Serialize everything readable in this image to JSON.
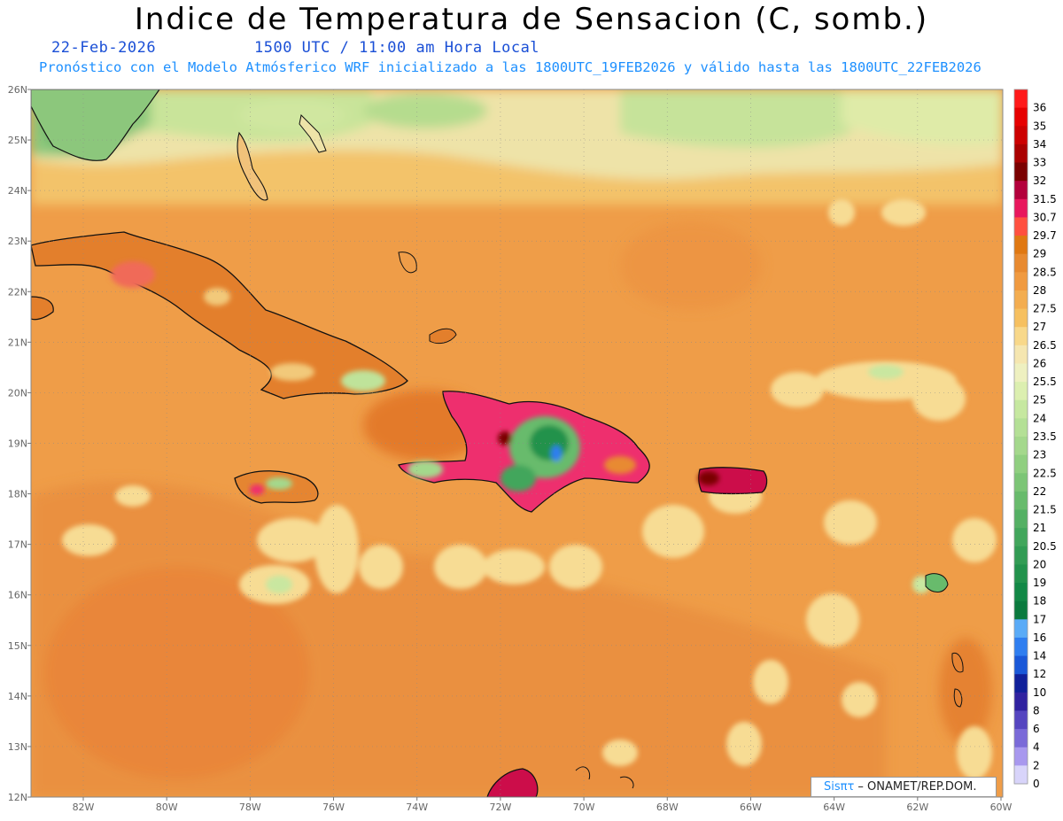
{
  "header": {
    "title": "Indice de Temperatura de Sensacion (C, somb.)",
    "date": "22-Feb-2026",
    "time": "1500 UTC / 11:00 am Hora Local",
    "forecast_info": "Pronóstico con el Modelo Atmósferico WRF inicializado a las 1800UTC_19FEB2026 y válido hasta las  1800UTC_22FEB2026"
  },
  "map": {
    "lat_labels": [
      "26N",
      "25N",
      "24N",
      "23N",
      "22N",
      "21N",
      "20N",
      "19N",
      "18N",
      "17N",
      "16N",
      "15N",
      "14N",
      "13N",
      "12N"
    ],
    "lon_labels": [
      "82W",
      "80W",
      "78W",
      "76W",
      "74W",
      "72W",
      "70W",
      "68W",
      "66W",
      "64W",
      "62W",
      "60W"
    ],
    "colors": {
      "background_field": "#f0a850",
      "warm_field": "#e8893c",
      "cool_field": "#a8d8a0"
    }
  },
  "colorbar": {
    "levels": [
      {
        "label": "36",
        "color": "#ff1a1a"
      },
      {
        "label": "35",
        "color": "#e60000"
      },
      {
        "label": "34",
        "color": "#cc0000"
      },
      {
        "label": "33",
        "color": "#aa0000"
      },
      {
        "label": "32",
        "color": "#7a0000"
      },
      {
        "label": "31.5",
        "color": "#b3003c"
      },
      {
        "label": "30.7",
        "color": "#e8175d"
      },
      {
        "label": "29.7",
        "color": "#ff5040"
      },
      {
        "label": "29",
        "color": "#e07812"
      },
      {
        "label": "28.5",
        "color": "#e88a30"
      },
      {
        "label": "28",
        "color": "#f09a40"
      },
      {
        "label": "27.5",
        "color": "#f3ad50"
      },
      {
        "label": "27",
        "color": "#f6c060"
      },
      {
        "label": "26.5",
        "color": "#f8d88a"
      },
      {
        "label": "26",
        "color": "#f5e6b0"
      },
      {
        "label": "25.5",
        "color": "#eef0c0"
      },
      {
        "label": "25",
        "color": "#dcefb0"
      },
      {
        "label": "24",
        "color": "#c6e8a0"
      },
      {
        "label": "23.5",
        "color": "#b4e096"
      },
      {
        "label": "23",
        "color": "#a4d88c"
      },
      {
        "label": "22.5",
        "color": "#90cf80"
      },
      {
        "label": "22",
        "color": "#7cc576"
      },
      {
        "label": "21.5",
        "color": "#68bb6c"
      },
      {
        "label": "21",
        "color": "#54b064"
      },
      {
        "label": "20.5",
        "color": "#42a65c"
      },
      {
        "label": "20",
        "color": "#329c54"
      },
      {
        "label": "19",
        "color": "#22924c"
      },
      {
        "label": "18",
        "color": "#128846"
      },
      {
        "label": "17",
        "color": "#0a7a3e"
      },
      {
        "label": "16",
        "color": "#5aabf7"
      },
      {
        "label": "14",
        "color": "#2f7ef0"
      },
      {
        "label": "12",
        "color": "#1a58d8"
      },
      {
        "label": "10",
        "color": "#10209a"
      },
      {
        "label": "8",
        "color": "#3022a0"
      },
      {
        "label": "6",
        "color": "#5545c0"
      },
      {
        "label": "4",
        "color": "#7a6ad8"
      },
      {
        "label": "2",
        "color": "#a898ee"
      },
      {
        "label": "0",
        "color": "#d8d4fa"
      }
    ]
  },
  "branding": {
    "logo_text": "Sisπτ",
    "org_text": " –  ONAMET/REP.DOM."
  }
}
